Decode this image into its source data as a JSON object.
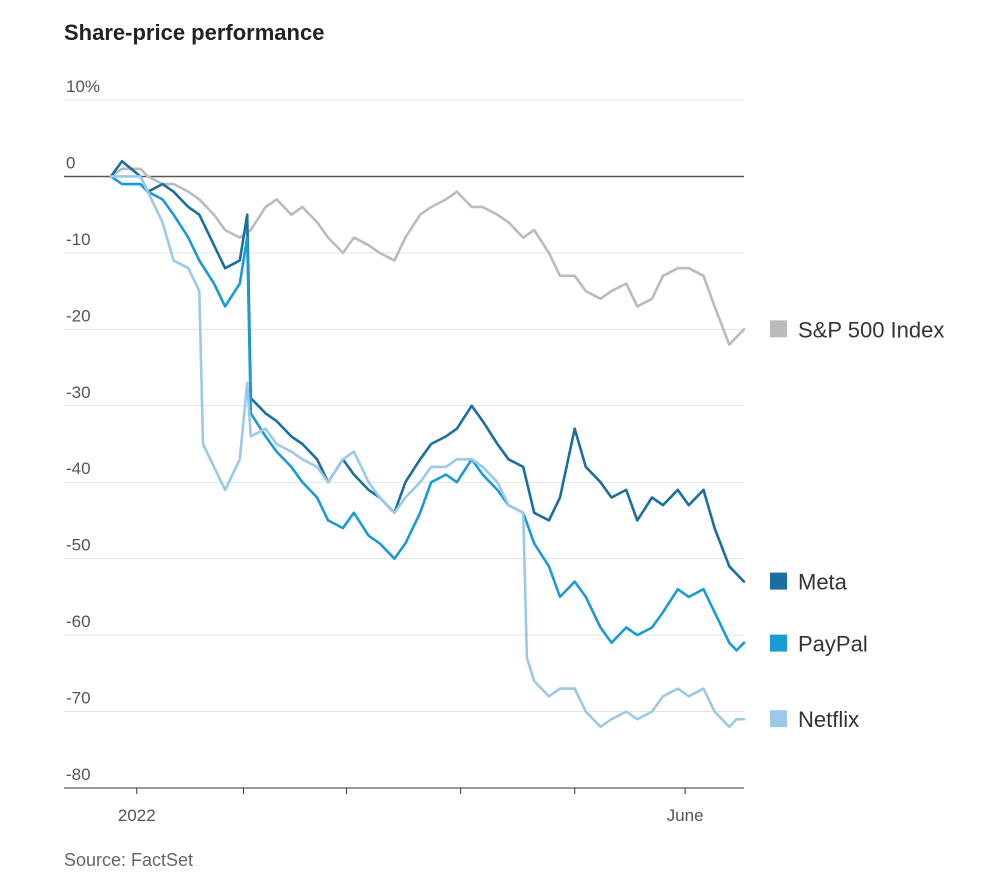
{
  "title": "Share-price performance",
  "source": "Source: FactSet",
  "chart_data": {
    "type": "line",
    "title": "Share-price performance",
    "ylabel": "",
    "xlabel": "",
    "ylim": [
      -80,
      10
    ],
    "yticks": [
      {
        "value": 10,
        "label": "10%"
      },
      {
        "value": 0,
        "label": "0"
      },
      {
        "value": -10,
        "label": "-10"
      },
      {
        "value": -20,
        "label": "-20"
      },
      {
        "value": -30,
        "label": "-30"
      },
      {
        "value": -40,
        "label": "-40"
      },
      {
        "value": -50,
        "label": "-50"
      },
      {
        "value": -60,
        "label": "-60"
      },
      {
        "value": -70,
        "label": "-70"
      },
      {
        "value": -80,
        "label": "-80"
      }
    ],
    "xlim": [
      "2021-12-27",
      "2022-06-17"
    ],
    "xticks": [
      {
        "value": "2022-01-03",
        "label": "2022"
      },
      {
        "value": "2022-02-01",
        "label": ""
      },
      {
        "value": "2022-03-01",
        "label": ""
      },
      {
        "value": "2022-04-01",
        "label": ""
      },
      {
        "value": "2022-05-02",
        "label": ""
      },
      {
        "value": "2022-06-01",
        "label": "June"
      }
    ],
    "grid": true,
    "legend_position": "right, at series end",
    "series": [
      {
        "name": "S&P 500 Index",
        "color": "#bbbbbb",
        "points": [
          [
            "2021-12-27",
            0
          ],
          [
            "2021-12-30",
            1
          ],
          [
            "2022-01-04",
            1
          ],
          [
            "2022-01-06",
            0
          ],
          [
            "2022-01-10",
            -1
          ],
          [
            "2022-01-13",
            -1
          ],
          [
            "2022-01-17",
            -2
          ],
          [
            "2022-01-20",
            -3
          ],
          [
            "2022-01-24",
            -5
          ],
          [
            "2022-01-27",
            -7
          ],
          [
            "2022-01-31",
            -8
          ],
          [
            "2022-02-03",
            -7
          ],
          [
            "2022-02-07",
            -4
          ],
          [
            "2022-02-10",
            -3
          ],
          [
            "2022-02-14",
            -5
          ],
          [
            "2022-02-17",
            -4
          ],
          [
            "2022-02-21",
            -6
          ],
          [
            "2022-02-24",
            -8
          ],
          [
            "2022-02-28",
            -10
          ],
          [
            "2022-03-03",
            -8
          ],
          [
            "2022-03-07",
            -9
          ],
          [
            "2022-03-10",
            -10
          ],
          [
            "2022-03-14",
            -11
          ],
          [
            "2022-03-17",
            -8
          ],
          [
            "2022-03-21",
            -5
          ],
          [
            "2022-03-24",
            -4
          ],
          [
            "2022-03-28",
            -3
          ],
          [
            "2022-03-31",
            -2
          ],
          [
            "2022-04-04",
            -4
          ],
          [
            "2022-04-07",
            -4
          ],
          [
            "2022-04-11",
            -5
          ],
          [
            "2022-04-14",
            -6
          ],
          [
            "2022-04-18",
            -8
          ],
          [
            "2022-04-21",
            -7
          ],
          [
            "2022-04-25",
            -10
          ],
          [
            "2022-04-28",
            -13
          ],
          [
            "2022-05-02",
            -13
          ],
          [
            "2022-05-05",
            -15
          ],
          [
            "2022-05-09",
            -16
          ],
          [
            "2022-05-12",
            -15
          ],
          [
            "2022-05-16",
            -14
          ],
          [
            "2022-05-19",
            -17
          ],
          [
            "2022-05-23",
            -16
          ],
          [
            "2022-05-26",
            -13
          ],
          [
            "2022-05-30",
            -12
          ],
          [
            "2022-06-02",
            -12
          ],
          [
            "2022-06-06",
            -13
          ],
          [
            "2022-06-09",
            -17
          ],
          [
            "2022-06-13",
            -22
          ],
          [
            "2022-06-15",
            -21
          ],
          [
            "2022-06-17",
            -20
          ]
        ]
      },
      {
        "name": "Meta",
        "color": "#1a6f9e",
        "points": [
          [
            "2021-12-27",
            0
          ],
          [
            "2021-12-30",
            2
          ],
          [
            "2022-01-04",
            0
          ],
          [
            "2022-01-06",
            -2
          ],
          [
            "2022-01-10",
            -1
          ],
          [
            "2022-01-13",
            -2
          ],
          [
            "2022-01-17",
            -4
          ],
          [
            "2022-01-20",
            -5
          ],
          [
            "2022-01-24",
            -9
          ],
          [
            "2022-01-27",
            -12
          ],
          [
            "2022-01-31",
            -11
          ],
          [
            "2022-02-02",
            -5
          ],
          [
            "2022-02-03",
            -29
          ],
          [
            "2022-02-07",
            -31
          ],
          [
            "2022-02-10",
            -32
          ],
          [
            "2022-02-14",
            -34
          ],
          [
            "2022-02-17",
            -35
          ],
          [
            "2022-02-21",
            -37
          ],
          [
            "2022-02-24",
            -40
          ],
          [
            "2022-02-28",
            -37
          ],
          [
            "2022-03-03",
            -39
          ],
          [
            "2022-03-07",
            -41
          ],
          [
            "2022-03-10",
            -42
          ],
          [
            "2022-03-14",
            -44
          ],
          [
            "2022-03-17",
            -40
          ],
          [
            "2022-03-21",
            -37
          ],
          [
            "2022-03-24",
            -35
          ],
          [
            "2022-03-28",
            -34
          ],
          [
            "2022-03-31",
            -33
          ],
          [
            "2022-04-04",
            -30
          ],
          [
            "2022-04-07",
            -32
          ],
          [
            "2022-04-11",
            -35
          ],
          [
            "2022-04-14",
            -37
          ],
          [
            "2022-04-18",
            -38
          ],
          [
            "2022-04-21",
            -44
          ],
          [
            "2022-04-25",
            -45
          ],
          [
            "2022-04-28",
            -42
          ],
          [
            "2022-05-02",
            -33
          ],
          [
            "2022-05-05",
            -38
          ],
          [
            "2022-05-09",
            -40
          ],
          [
            "2022-05-12",
            -42
          ],
          [
            "2022-05-16",
            -41
          ],
          [
            "2022-05-19",
            -45
          ],
          [
            "2022-05-23",
            -42
          ],
          [
            "2022-05-26",
            -43
          ],
          [
            "2022-05-30",
            -41
          ],
          [
            "2022-06-02",
            -43
          ],
          [
            "2022-06-06",
            -41
          ],
          [
            "2022-06-09",
            -46
          ],
          [
            "2022-06-13",
            -51
          ],
          [
            "2022-06-15",
            -52
          ],
          [
            "2022-06-17",
            -53
          ]
        ]
      },
      {
        "name": "PayPal",
        "color": "#1a9bd8",
        "points": [
          [
            "2021-12-27",
            0
          ],
          [
            "2021-12-30",
            -1
          ],
          [
            "2022-01-04",
            -1
          ],
          [
            "2022-01-06",
            -2
          ],
          [
            "2022-01-10",
            -3
          ],
          [
            "2022-01-13",
            -5
          ],
          [
            "2022-01-17",
            -8
          ],
          [
            "2022-01-20",
            -11
          ],
          [
            "2022-01-24",
            -14
          ],
          [
            "2022-01-27",
            -17
          ],
          [
            "2022-01-31",
            -14
          ],
          [
            "2022-02-02",
            -8
          ],
          [
            "2022-02-03",
            -31
          ],
          [
            "2022-02-07",
            -34
          ],
          [
            "2022-02-10",
            -36
          ],
          [
            "2022-02-14",
            -38
          ],
          [
            "2022-02-17",
            -40
          ],
          [
            "2022-02-21",
            -42
          ],
          [
            "2022-02-24",
            -45
          ],
          [
            "2022-02-28",
            -46
          ],
          [
            "2022-03-03",
            -44
          ],
          [
            "2022-03-07",
            -47
          ],
          [
            "2022-03-10",
            -48
          ],
          [
            "2022-03-14",
            -50
          ],
          [
            "2022-03-17",
            -48
          ],
          [
            "2022-03-21",
            -44
          ],
          [
            "2022-03-24",
            -40
          ],
          [
            "2022-03-28",
            -39
          ],
          [
            "2022-03-31",
            -40
          ],
          [
            "2022-04-04",
            -37
          ],
          [
            "2022-04-07",
            -39
          ],
          [
            "2022-04-11",
            -41
          ],
          [
            "2022-04-14",
            -43
          ],
          [
            "2022-04-18",
            -44
          ],
          [
            "2022-04-21",
            -48
          ],
          [
            "2022-04-25",
            -51
          ],
          [
            "2022-04-28",
            -55
          ],
          [
            "2022-05-02",
            -53
          ],
          [
            "2022-05-05",
            -55
          ],
          [
            "2022-05-09",
            -59
          ],
          [
            "2022-05-12",
            -61
          ],
          [
            "2022-05-16",
            -59
          ],
          [
            "2022-05-19",
            -60
          ],
          [
            "2022-05-23",
            -59
          ],
          [
            "2022-05-26",
            -57
          ],
          [
            "2022-05-30",
            -54
          ],
          [
            "2022-06-02",
            -55
          ],
          [
            "2022-06-06",
            -54
          ],
          [
            "2022-06-09",
            -57
          ],
          [
            "2022-06-13",
            -61
          ],
          [
            "2022-06-15",
            -62
          ],
          [
            "2022-06-17",
            -61
          ]
        ]
      },
      {
        "name": "Netflix",
        "color": "#9cc9e8",
        "points": [
          [
            "2021-12-27",
            0
          ],
          [
            "2021-12-30",
            0
          ],
          [
            "2022-01-04",
            0
          ],
          [
            "2022-01-06",
            -2
          ],
          [
            "2022-01-10",
            -6
          ],
          [
            "2022-01-13",
            -11
          ],
          [
            "2022-01-17",
            -12
          ],
          [
            "2022-01-20",
            -15
          ],
          [
            "2022-01-21",
            -35
          ],
          [
            "2022-01-24",
            -38
          ],
          [
            "2022-01-27",
            -41
          ],
          [
            "2022-01-31",
            -37
          ],
          [
            "2022-02-02",
            -27
          ],
          [
            "2022-02-03",
            -34
          ],
          [
            "2022-02-07",
            -33
          ],
          [
            "2022-02-10",
            -35
          ],
          [
            "2022-02-14",
            -36
          ],
          [
            "2022-02-17",
            -37
          ],
          [
            "2022-02-21",
            -38
          ],
          [
            "2022-02-24",
            -40
          ],
          [
            "2022-02-28",
            -37
          ],
          [
            "2022-03-03",
            -36
          ],
          [
            "2022-03-07",
            -40
          ],
          [
            "2022-03-10",
            -42
          ],
          [
            "2022-03-14",
            -44
          ],
          [
            "2022-03-17",
            -42
          ],
          [
            "2022-03-21",
            -40
          ],
          [
            "2022-03-24",
            -38
          ],
          [
            "2022-03-28",
            -38
          ],
          [
            "2022-03-31",
            -37
          ],
          [
            "2022-04-04",
            -37
          ],
          [
            "2022-04-07",
            -38
          ],
          [
            "2022-04-11",
            -40
          ],
          [
            "2022-04-14",
            -43
          ],
          [
            "2022-04-18",
            -44
          ],
          [
            "2022-04-19",
            -63
          ],
          [
            "2022-04-21",
            -66
          ],
          [
            "2022-04-25",
            -68
          ],
          [
            "2022-04-28",
            -67
          ],
          [
            "2022-05-02",
            -67
          ],
          [
            "2022-05-05",
            -70
          ],
          [
            "2022-05-09",
            -72
          ],
          [
            "2022-05-12",
            -71
          ],
          [
            "2022-05-16",
            -70
          ],
          [
            "2022-05-19",
            -71
          ],
          [
            "2022-05-23",
            -70
          ],
          [
            "2022-05-26",
            -68
          ],
          [
            "2022-05-30",
            -67
          ],
          [
            "2022-06-02",
            -68
          ],
          [
            "2022-06-06",
            -67
          ],
          [
            "2022-06-09",
            -70
          ],
          [
            "2022-06-13",
            -72
          ],
          [
            "2022-06-15",
            -71
          ],
          [
            "2022-06-17",
            -71
          ]
        ]
      }
    ]
  }
}
